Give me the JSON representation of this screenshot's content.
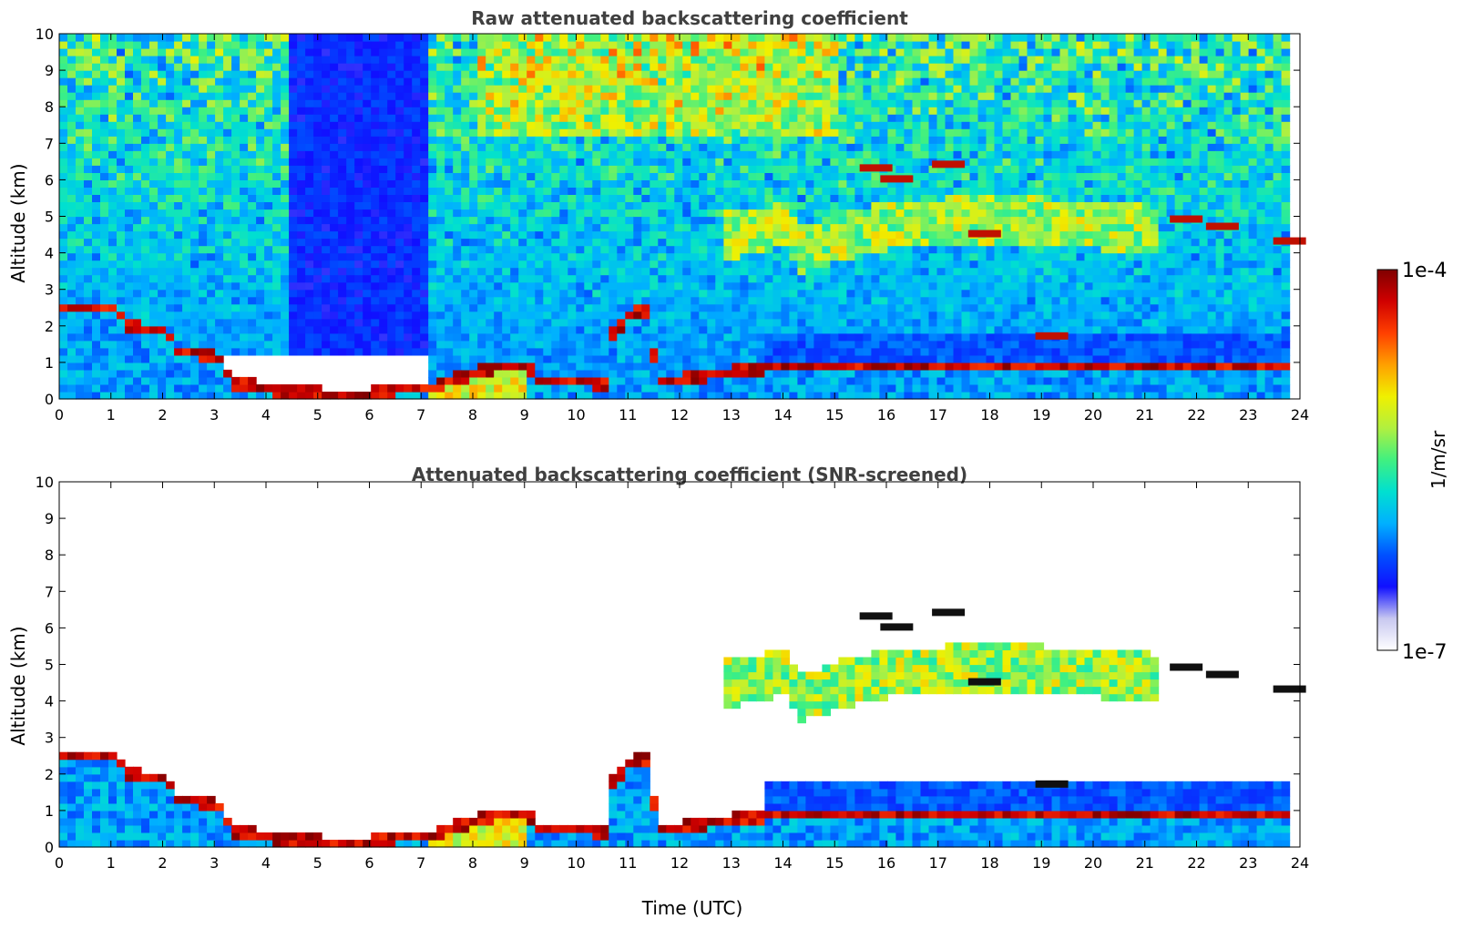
{
  "chart_data": [
    {
      "type": "heatmap",
      "title": "Raw attenuated backscattering coefficient",
      "xlabel": "",
      "ylabel": "Altitude (km)",
      "xlim": [
        0,
        24
      ],
      "ylim": [
        0,
        10
      ],
      "xticks": [
        "0",
        "1",
        "2",
        "3",
        "4",
        "5",
        "6",
        "7",
        "8",
        "9",
        "10",
        "11",
        "12",
        "13",
        "14",
        "15",
        "16",
        "17",
        "18",
        "19",
        "20",
        "21",
        "22",
        "23",
        "24"
      ],
      "yticks": [
        "0",
        "1",
        "2",
        "3",
        "4",
        "5",
        "6",
        "7",
        "8",
        "9",
        "10"
      ],
      "grid": false,
      "features": {
        "boundary_layer_top": [
          [
            0,
            2.6
          ],
          [
            0.5,
            2.6
          ],
          [
            1,
            2.5
          ],
          [
            1.3,
            2.05
          ],
          [
            2,
            1.9
          ],
          [
            2.2,
            1.4
          ],
          [
            2.6,
            1.3
          ],
          [
            3,
            1.2
          ],
          [
            3.3,
            0.5
          ],
          [
            4,
            0.3
          ],
          [
            5,
            0.2
          ],
          [
            6,
            0.2
          ],
          [
            6.5,
            0.3
          ],
          [
            7,
            0.3
          ],
          [
            7.5,
            0.55
          ],
          [
            8,
            0.8
          ],
          [
            8.5,
            0.95
          ],
          [
            9,
            1.0
          ],
          [
            9.2,
            0.5
          ],
          [
            10,
            0.6
          ],
          [
            10.5,
            0.4
          ],
          [
            10.6,
            1.8
          ],
          [
            11,
            2.4
          ],
          [
            11.3,
            2.5
          ],
          [
            11.5,
            0.5
          ],
          [
            12,
            0.6
          ],
          [
            12.5,
            0.7
          ],
          [
            13,
            0.8
          ],
          [
            13.5,
            0.9
          ]
        ],
        "mid_level_cloud_base": [
          [
            12.8,
            3.8
          ],
          [
            13.5,
            4.0
          ],
          [
            14,
            4.2
          ],
          [
            14.2,
            3.4
          ],
          [
            15,
            3.8
          ],
          [
            16,
            4.1
          ],
          [
            17,
            4.2
          ],
          [
            18,
            4.3
          ],
          [
            19,
            4.2
          ],
          [
            20,
            4.1
          ],
          [
            21,
            4.0
          ]
        ],
        "cloud_layers": [
          [
            15.8,
            6.3
          ],
          [
            16.2,
            6.0
          ],
          [
            17.2,
            6.4
          ],
          [
            17.9,
            4.5
          ],
          [
            19.2,
            1.7
          ],
          [
            21.8,
            4.9
          ],
          [
            22.5,
            4.7
          ],
          [
            23.8,
            4.3
          ]
        ],
        "low_signal_band_hours": [
          4.3,
          7.1
        ]
      }
    },
    {
      "type": "heatmap",
      "title": "Attenuated backscattering coefficient (SNR-screened)",
      "xlabel": "Time (UTC)",
      "ylabel": "Altitude (km)",
      "xlim": [
        0,
        24
      ],
      "ylim": [
        0,
        10
      ],
      "xticks": [
        "0",
        "1",
        "2",
        "3",
        "4",
        "5",
        "6",
        "7",
        "8",
        "9",
        "10",
        "11",
        "12",
        "13",
        "14",
        "15",
        "16",
        "17",
        "18",
        "19",
        "20",
        "21",
        "22",
        "23",
        "24"
      ],
      "yticks": [
        "0",
        "1",
        "2",
        "3",
        "4",
        "5",
        "6",
        "7",
        "8",
        "9",
        "10"
      ],
      "grid": false
    }
  ],
  "colorbar": {
    "label": "1/m/sr",
    "max_label": "1e-4",
    "min_label": "1e-7",
    "scale": "log",
    "colors": [
      "#ffffff",
      "#c8c8f0",
      "#1010ff",
      "#0050ff",
      "#00b0ff",
      "#00e0d0",
      "#40f080",
      "#b0f040",
      "#f0f000",
      "#ffa000",
      "#ff4000",
      "#d00000",
      "#800000"
    ]
  }
}
